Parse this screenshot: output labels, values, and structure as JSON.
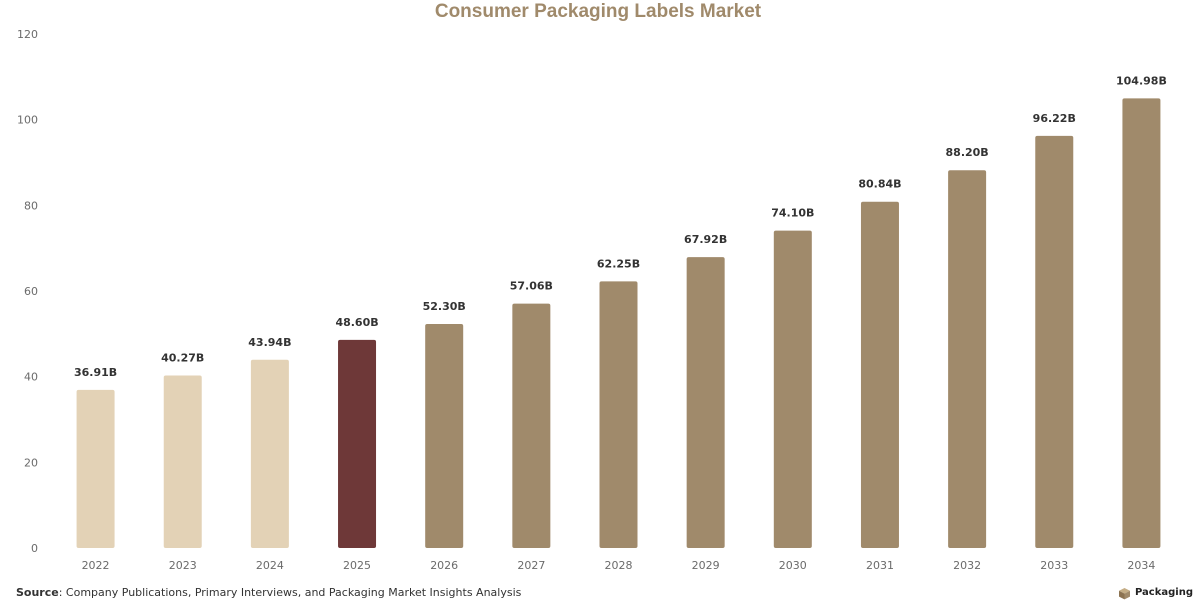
{
  "chart_data": {
    "type": "bar",
    "title": "Consumer Packaging Labels Market",
    "categories": [
      "2022",
      "2023",
      "2024",
      "2025",
      "2026",
      "2027",
      "2028",
      "2029",
      "2030",
      "2031",
      "2032",
      "2033",
      "2034"
    ],
    "values": [
      36.91,
      40.27,
      43.94,
      48.6,
      52.3,
      57.06,
      62.25,
      67.92,
      74.1,
      80.84,
      88.2,
      96.22,
      104.98
    ],
    "data_labels": [
      "36.91B",
      "40.27B",
      "43.94B",
      "48.60B",
      "52.30B",
      "57.06B",
      "62.25B",
      "67.92B",
      "74.10B",
      "80.84B",
      "88.20B",
      "96.22B",
      "104.98B"
    ],
    "bar_colors": [
      "#e3d2b6",
      "#e3d2b6",
      "#e3d2b6",
      "#6e3838",
      "#a08a6b",
      "#a08a6b",
      "#a08a6b",
      "#a08a6b",
      "#a08a6b",
      "#a08a6b",
      "#a08a6b",
      "#a08a6b",
      "#a08a6b"
    ],
    "ylim": [
      0,
      120
    ],
    "yticks": [
      "0",
      "20",
      "40",
      "60",
      "80",
      "100",
      "120"
    ],
    "grid": false,
    "xlabel": "",
    "ylabel": ""
  },
  "footer": {
    "source_label": "Source",
    "source_text": ": Company Publications, Primary Interviews, and Packaging Market Insights Analysis",
    "brand_text": "Packaging",
    "brand_icon": "box-icon",
    "brand_color": "#a08a6b"
  }
}
